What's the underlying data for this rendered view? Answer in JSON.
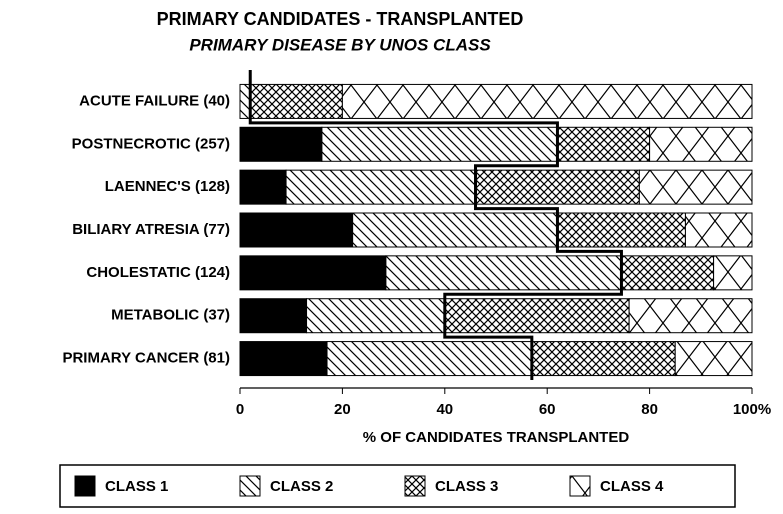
{
  "chart_data": {
    "type": "stacked_bar_horizontal",
    "title": "PRIMARY CANDIDATES - TRANSPLANTED",
    "subtitle": "PRIMARY DISEASE BY UNOS CLASS",
    "x_label": "% OF CANDIDATES TRANSPLANTED",
    "categories": [
      "ACUTE FAILURE (40)",
      "POSTNECROTIC (257)",
      "LAENNEC'S (128)",
      "BILIARY ATRESIA (77)",
      "CHOLESTATIC (124)",
      "METABOLIC (37)",
      "PRIMARY CANCER (81)"
    ],
    "series": [
      {
        "name": "CLASS 1",
        "color": "#000000",
        "values": [
          0,
          16,
          9,
          22,
          28.5,
          13,
          17
        ]
      },
      {
        "name": "CLASS 2",
        "color": "#000000",
        "values": [
          2,
          46,
          37,
          40,
          46,
          27,
          40
        ]
      },
      {
        "name": "CLASS 3",
        "color": "#000000",
        "values": [
          18,
          18,
          32,
          25,
          18,
          36,
          28
        ]
      },
      {
        "name": "CLASS 4",
        "color": "#000000",
        "values": [
          80,
          20,
          22,
          13,
          7.5,
          24,
          15
        ]
      }
    ],
    "xlim": [
      0,
      100
    ],
    "xticks": [
      0,
      20,
      40,
      60,
      80,
      {
        "value": 100,
        "label": "100%"
      }
    ],
    "legend": "bottom"
  }
}
